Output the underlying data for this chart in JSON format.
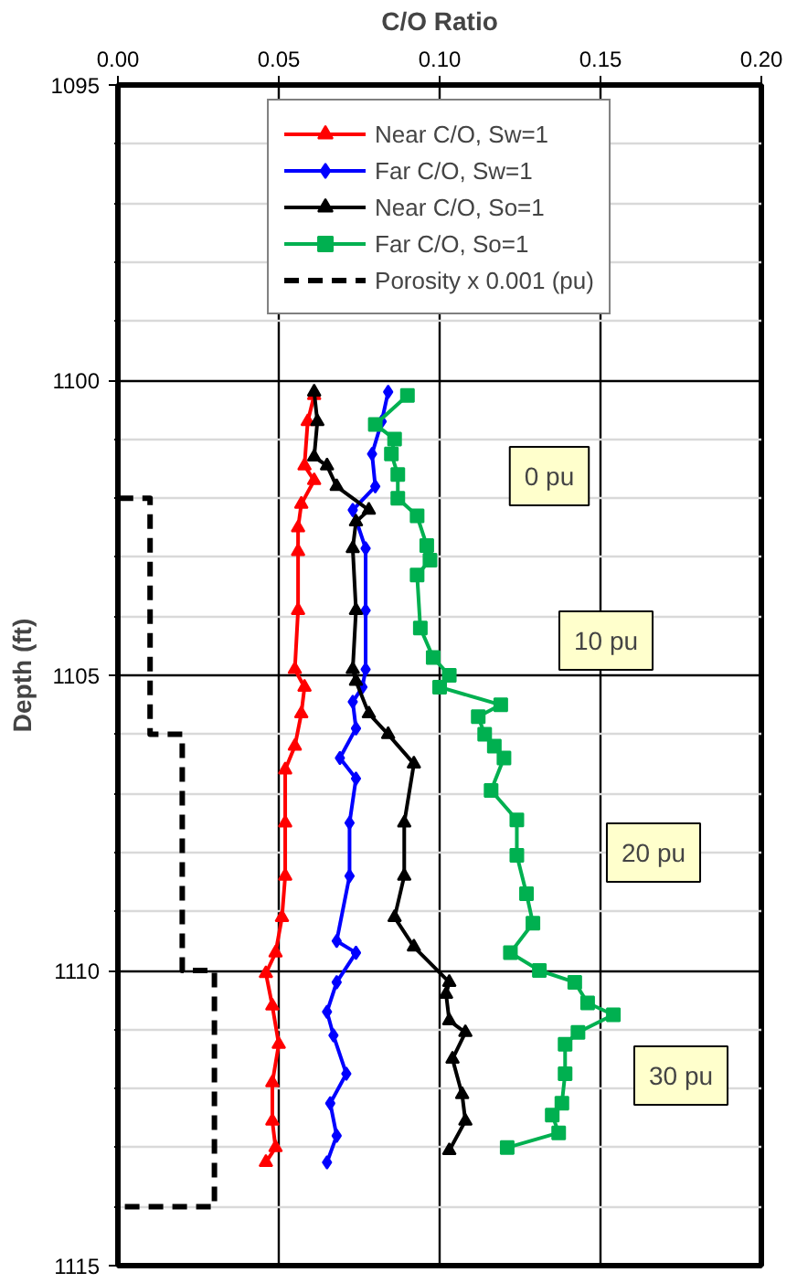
{
  "chart_data": {
    "type": "line",
    "xlabel": "C/O Ratio",
    "ylabel": "Depth (ft)",
    "xlim": [
      0,
      0.2
    ],
    "ylim": [
      1115,
      1095
    ],
    "xticks": [
      {
        "value": 0,
        "label": "0.00"
      },
      {
        "value": 0.05,
        "label": "0.05"
      },
      {
        "value": 0.1,
        "label": "0.10"
      },
      {
        "value": 0.15,
        "label": "0.15"
      },
      {
        "value": 0.2,
        "label": "0.20"
      }
    ],
    "yticks": [
      1095,
      {
        "value": 1096,
        "label": null
      },
      {
        "value": 1097,
        "label": null
      },
      {
        "value": 1098,
        "label": null
      },
      {
        "value": 1099,
        "label": null
      },
      1100,
      {
        "value": 1101,
        "label": null
      },
      {
        "value": 1102,
        "label": null
      },
      {
        "value": 1103,
        "label": null
      },
      {
        "value": 1104,
        "label": null
      },
      1105,
      {
        "value": 1106,
        "label": null
      },
      {
        "value": 1107,
        "label": null
      },
      {
        "value": 1108,
        "label": null
      },
      {
        "value": 1109,
        "label": null
      },
      1110,
      {
        "value": 1111,
        "label": null
      },
      {
        "value": 1112,
        "label": null
      },
      {
        "value": 1113,
        "label": null
      },
      {
        "value": 1114,
        "label": null
      },
      1115
    ],
    "grid": true,
    "legend": "top",
    "series": [
      {
        "name": "Near C/O, Sw=1",
        "color": "#ff0000",
        "marker": "triangle",
        "x": [
          0.061,
          0.059,
          0.058,
          0.061,
          0.057,
          0.056,
          0.056,
          0.056,
          0.055,
          0.058,
          0.057,
          0.055,
          0.052,
          0.052,
          0.052,
          0.051,
          0.049,
          0.046,
          0.048,
          0.05,
          0.048,
          0.048,
          0.049,
          0.046
        ],
        "values": [
          1100.26,
          1100.7,
          1101.45,
          1101.7,
          1102.1,
          1102.5,
          1102.9,
          1103.9,
          1104.9,
          1105.2,
          1105.65,
          1106.2,
          1106.6,
          1107.5,
          1108.4,
          1109.1,
          1109.7,
          1110.05,
          1110.6,
          1111.25,
          1111.9,
          1112.55,
          1113.0,
          1113.25
        ]
      },
      {
        "name": "Far C/O, Sw=1",
        "color": "#0000ff",
        "marker": "diamond",
        "x": [
          0.084,
          0.082,
          0.079,
          0.08,
          0.073,
          0.077,
          0.077,
          0.077,
          0.076,
          0.073,
          0.074,
          0.069,
          0.074,
          0.072,
          0.072,
          0.068,
          0.074,
          0.068,
          0.065,
          0.067,
          0.071,
          0.066,
          0.068,
          0.065
        ],
        "values": [
          1100.2,
          1100.7,
          1101.25,
          1101.8,
          1102.2,
          1102.85,
          1103.9,
          1104.9,
          1105.2,
          1105.45,
          1105.9,
          1106.4,
          1106.75,
          1107.5,
          1108.4,
          1109.5,
          1109.7,
          1110.2,
          1110.7,
          1111.1,
          1111.75,
          1112.25,
          1112.8,
          1113.25
        ]
      },
      {
        "name": "Near C/O, So=1",
        "color": "#000000",
        "marker": "triangle",
        "x": [
          0.061,
          0.062,
          0.061,
          0.065,
          0.068,
          0.078,
          0.074,
          0.073,
          0.074,
          0.073,
          0.074,
          0.078,
          0.084,
          0.092,
          0.089,
          0.089,
          0.086,
          0.092,
          0.103,
          0.102,
          0.103,
          0.108,
          0.104,
          0.107,
          0.108,
          0.103
        ],
        "values": [
          1100.2,
          1100.7,
          1101.3,
          1101.45,
          1101.8,
          1102.2,
          1102.4,
          1102.85,
          1103.9,
          1104.9,
          1105.1,
          1105.65,
          1106.0,
          1106.5,
          1107.5,
          1108.4,
          1109.1,
          1109.6,
          1110.2,
          1110.4,
          1110.85,
          1111.05,
          1111.5,
          1112.1,
          1112.55,
          1113.05
        ]
      },
      {
        "name": "Far C/O, So=1",
        "color": "#00b050",
        "marker": "square",
        "x": [
          0.09,
          0.08,
          0.086,
          0.085,
          0.087,
          0.087,
          0.093,
          0.096,
          0.097,
          0.093,
          0.094,
          0.098,
          0.103,
          0.1,
          0.119,
          0.112,
          0.114,
          0.117,
          0.12,
          0.116,
          0.124,
          0.124,
          0.127,
          0.129,
          0.122,
          0.131,
          0.142,
          0.146,
          0.154,
          0.143,
          0.139,
          0.139,
          0.138,
          0.135,
          0.137,
          0.121
        ],
        "values": [
          1100.26,
          1100.75,
          1101.0,
          1101.25,
          1101.6,
          1102.0,
          1102.3,
          1102.8,
          1103.05,
          1103.3,
          1104.2,
          1104.7,
          1105.0,
          1105.2,
          1105.5,
          1105.7,
          1106.0,
          1106.2,
          1106.4,
          1106.95,
          1107.45,
          1108.05,
          1108.7,
          1109.2,
          1109.7,
          1110.0,
          1110.2,
          1110.55,
          1110.75,
          1111.05,
          1111.25,
          1111.75,
          1112.25,
          1112.45,
          1112.75,
          1113.0
        ]
      },
      {
        "name": "Porosity x 0.001 (pu)",
        "color": "#000000",
        "marker": "none",
        "line_style": "dashed",
        "x": [
          0,
          0,
          0.01,
          0.01,
          0.02,
          0.02,
          0.03,
          0.03,
          0
        ],
        "values": [
          1100,
          1102,
          1102,
          1106,
          1106,
          1110,
          1110,
          1114,
          1114
        ]
      }
    ],
    "annotations": [
      "0 pu",
      "10 pu",
      "20 pu",
      "30 pu"
    ]
  }
}
